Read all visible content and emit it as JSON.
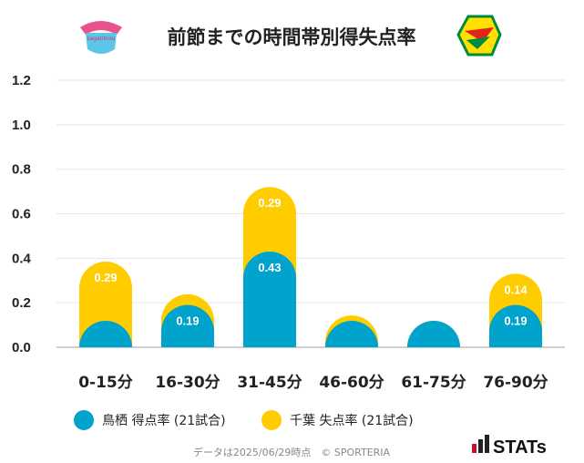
{
  "chart_data": {
    "type": "bar",
    "title": "前節までの時間帯別得失点率",
    "categories": [
      "0-15分",
      "16-30分",
      "31-45分",
      "46-60分",
      "61-75分",
      "76-90分"
    ],
    "series": [
      {
        "name": "鳥栖 得点率 (21試合)",
        "values": [
          0.095,
          0.19,
          0.43,
          0.048,
          0.048,
          0.19
        ],
        "labels": [
          "",
          "0.19",
          "0.43",
          "",
          "",
          "0.19"
        ],
        "color": "#00a3cc"
      },
      {
        "name": "千葉 失点率 (21試合)",
        "values": [
          0.29,
          0.048,
          0.29,
          0.095,
          0.048,
          0.14
        ],
        "labels": [
          "0.29",
          "",
          "0.29",
          "",
          "",
          "0.14"
        ],
        "color": "#ffcc00"
      }
    ],
    "stacked": true,
    "yticks": [
      "0.0",
      "0.2",
      "0.4",
      "0.6",
      "0.8",
      "1.0",
      "1.2"
    ],
    "ylim": [
      0,
      1.2
    ],
    "grid": true,
    "legend_position": "bottom"
  },
  "team_logos": {
    "left": "sagan-tosu-crest",
    "right": "jef-united-crest"
  },
  "left_logo_text": "sagantosu",
  "footer": "データは2025/06/29時点　© SPORTERIA",
  "brand": "STATs"
}
